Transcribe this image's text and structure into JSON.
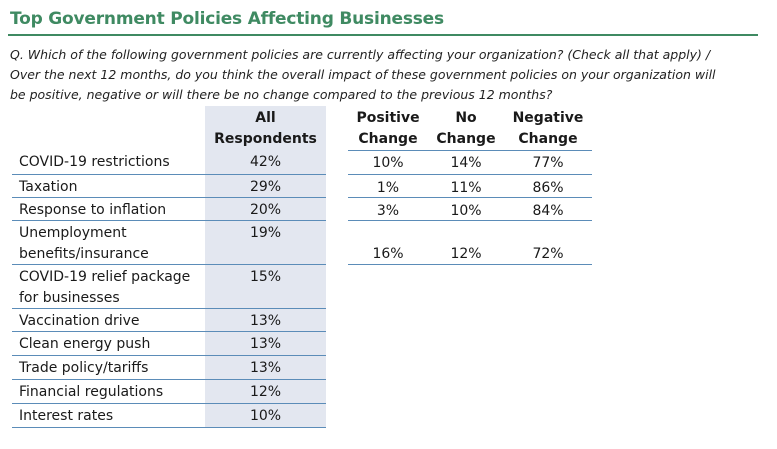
{
  "title": "Top Government Policies Affecting Businesses",
  "question": {
    "line1": "Q. Which of the following government policies are currently affecting your organization? (Check all that apply) /",
    "line2": "Over the next 12 months, do you think the overall impact of these government policies on your organization will",
    "line3": "be positive, negative or will there be no change compared to the previous 12 months?"
  },
  "headers": {
    "all_line1": "All",
    "all_line2": "Respondents",
    "positive_line1": "Positive",
    "positive_line2": "Change",
    "no_line1": "No",
    "no_line2": "Change",
    "negative_line1": "Negative",
    "negative_line2": "Change"
  },
  "policies": [
    {
      "label_line1": "COVID-19 restrictions",
      "label_line2": "",
      "all": "42%"
    },
    {
      "label_line1": "Taxation",
      "label_line2": "",
      "all": "29%"
    },
    {
      "label_line1": "Response to inflation",
      "label_line2": "",
      "all": "20%"
    },
    {
      "label_line1": "Unemployment",
      "label_line2": "benefits/insurance",
      "all": "19%"
    },
    {
      "label_line1": "COVID-19 relief package",
      "label_line2": "for businesses",
      "all": "15%"
    },
    {
      "label_line1": "Vaccination drive",
      "label_line2": "",
      "all": "13%"
    },
    {
      "label_line1": "Clean energy push",
      "label_line2": "",
      "all": "13%"
    },
    {
      "label_line1": "Trade policy/tariffs",
      "label_line2": "",
      "all": "13%"
    },
    {
      "label_line1": "Financial regulations",
      "label_line2": "",
      "all": "12%"
    },
    {
      "label_line1": "Interest rates",
      "label_line2": "",
      "all": "10%"
    }
  ],
  "change": [
    {
      "positive": "10%",
      "no": "14%",
      "negative": "77%"
    },
    {
      "positive": "1%",
      "no": "11%",
      "negative": "86%"
    },
    {
      "positive": "3%",
      "no": "10%",
      "negative": "84%"
    },
    {
      "positive": "16%",
      "no": "12%",
      "negative": "72%"
    }
  ]
}
